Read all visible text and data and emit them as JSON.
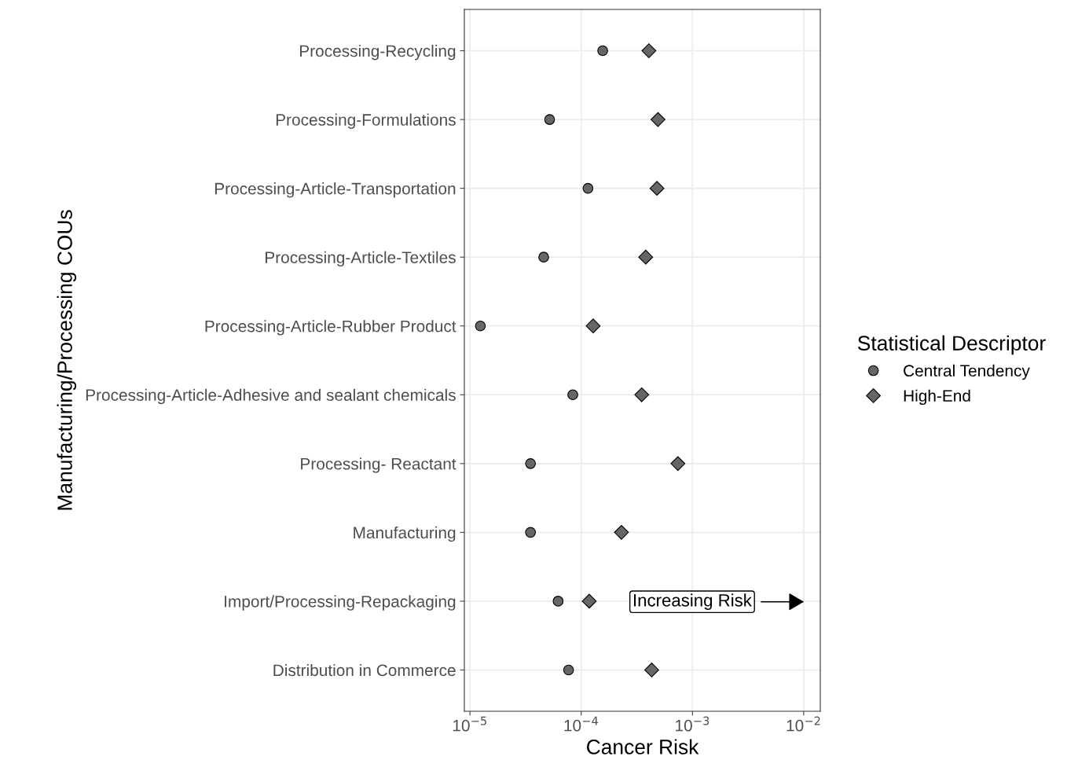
{
  "chart_data": {
    "type": "scatter",
    "orientation": "horizontal",
    "xlabel": "Cancer Risk",
    "ylabel": "Manufacturing/Processing COUs",
    "legend_title": "Statistical Descriptor",
    "legend": "right",
    "grid": true,
    "log": "x",
    "categories": [
      "Processing-Recycling",
      "Processing-Formulations",
      "Processing-Article-Transportation",
      "Processing-Article-Textiles",
      "Processing-Article-Rubber Product",
      "Processing-Article-Adhesive and sealant chemicals",
      "Processing- Reactant",
      "Manufacturing",
      "Import/Processing-Repackaging",
      "Distribution in Commerce"
    ],
    "xlim": [
      8.9e-06,
      0.0141
    ],
    "xticks": [
      {
        "value": 1e-05,
        "label": "10$^{−5}$"
      },
      {
        "value": 0.0001,
        "label": "10$^{−4}$"
      },
      {
        "value": 0.001,
        "label": "10$^{−3}$"
      },
      {
        "value": 0.01,
        "label": "10$^{−2}$"
      }
    ],
    "series": [
      {
        "name": "Central Tendency",
        "color": "#666666",
        "marker": "circle",
        "values": [
          0.000156,
          5.2e-05,
          0.000115,
          4.6e-05,
          1.24e-05,
          8.4e-05,
          3.5e-05,
          3.5e-05,
          6.2e-05,
          7.7e-05
        ]
      },
      {
        "name": "High-End",
        "color": "#666666",
        "marker": "diamond",
        "values": [
          0.000406,
          0.00049,
          0.00048,
          0.00038,
          0.000128,
          0.00035,
          0.00074,
          0.00023,
          0.000118,
          0.00043
        ]
      }
    ],
    "annotations": [
      "Increasing Risk"
    ]
  }
}
